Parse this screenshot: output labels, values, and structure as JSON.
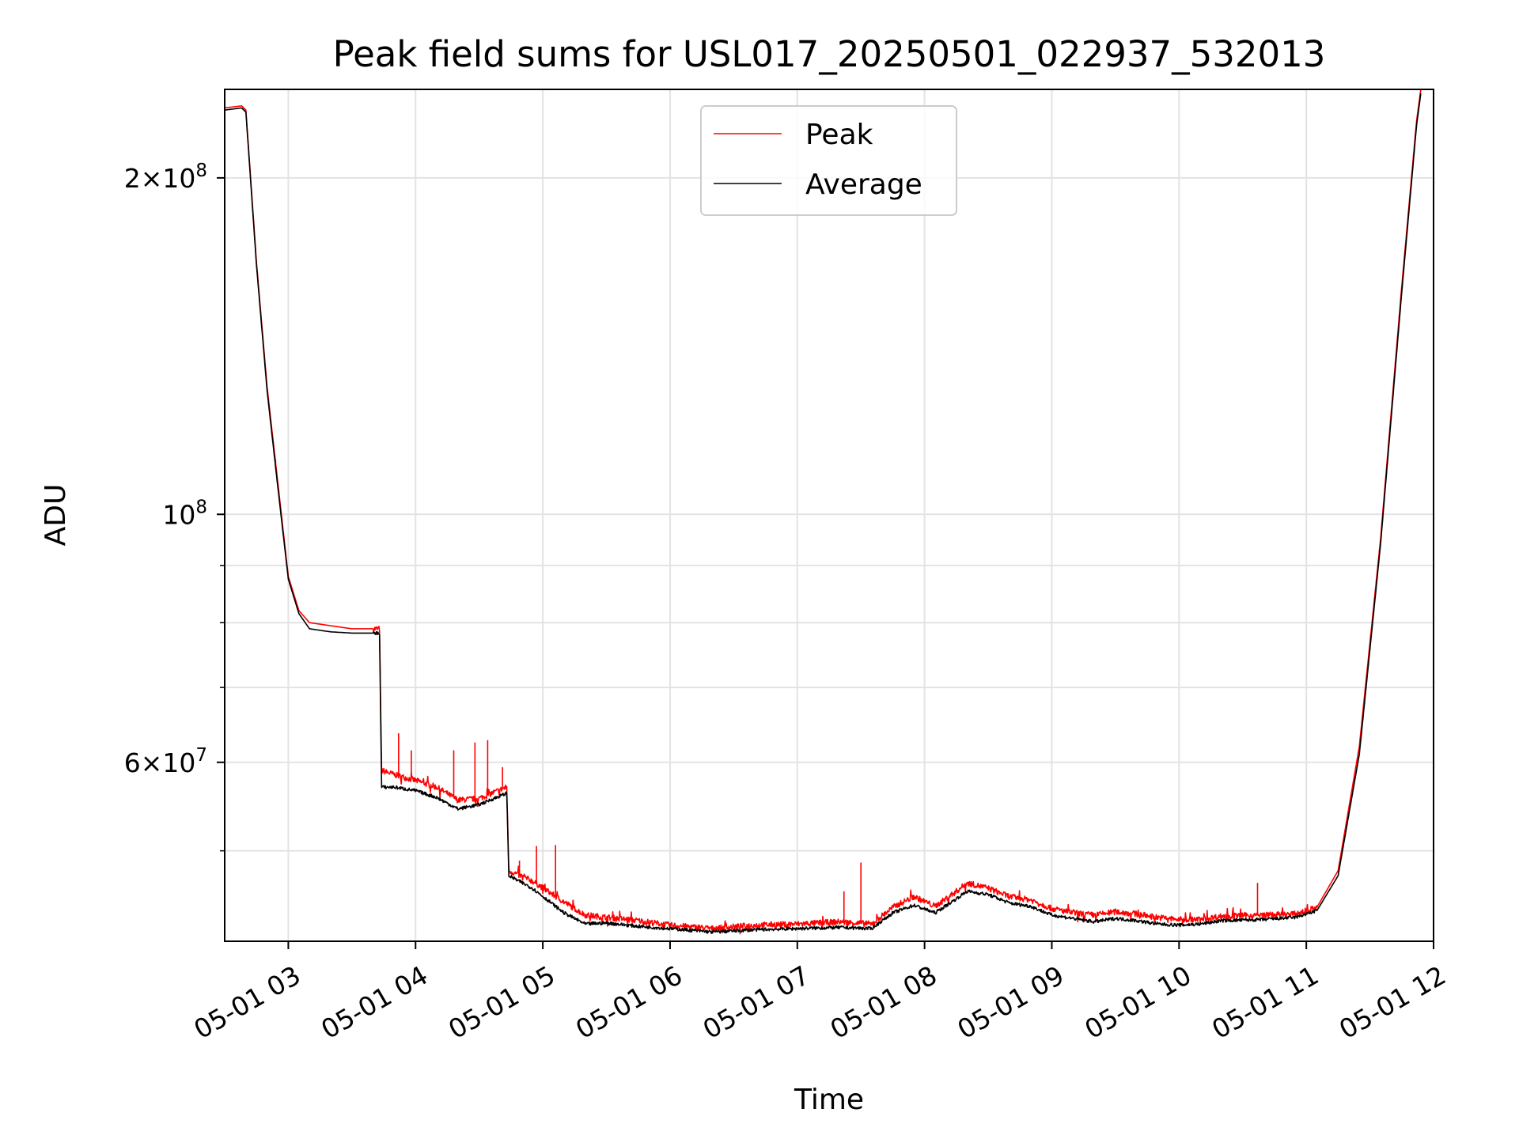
{
  "chart_data": {
    "type": "line",
    "title": "Peak field sums for USL017_20250501_022937_532013",
    "xlabel": "Time",
    "ylabel": "ADU",
    "yscale": "log",
    "xlim": [
      "2025-05-01 02:30",
      "2025-05-01 12:00"
    ],
    "ylim": [
      41500000,
      240000000
    ],
    "grid": true,
    "legend_position": "top-center",
    "x_ticks": [
      "05-01 03",
      "05-01 04",
      "05-01 05",
      "05-01 06",
      "05-01 07",
      "05-01 08",
      "05-01 09",
      "05-01 10",
      "05-01 11",
      "05-01 12"
    ],
    "y_ticks": [
      {
        "value": 60000000,
        "mantissa": "6",
        "exponent": "7"
      },
      {
        "value": 100000000,
        "mantissa": "",
        "exponent": "8"
      },
      {
        "value": 200000000,
        "mantissa": "2",
        "exponent": "8"
      }
    ],
    "series": [
      {
        "name": "Peak",
        "color": "#ff0000",
        "x": [
          "02:30",
          "02:38",
          "02:40",
          "02:45",
          "02:50",
          "02:55",
          "03:00",
          "03:05",
          "03:10",
          "03:20",
          "03:30",
          "03:43",
          "03:44",
          "03:50",
          "04:00",
          "04:10",
          "04:20",
          "04:30",
          "04:43",
          "04:44",
          "04:55",
          "05:10",
          "05:20",
          "05:30",
          "05:45",
          "06:00",
          "06:20",
          "06:40",
          "07:00",
          "07:20",
          "07:35",
          "07:45",
          "07:55",
          "08:05",
          "08:15",
          "08:20",
          "08:30",
          "08:40",
          "08:50",
          "09:00",
          "09:10",
          "09:20",
          "09:30",
          "09:40",
          "09:50",
          "10:00",
          "10:10",
          "10:20",
          "10:40",
          "10:55",
          "11:05",
          "11:15",
          "11:25",
          "11:35",
          "11:45",
          "11:52",
          "11:54"
        ],
        "values": [
          231000000,
          232000000,
          230000000,
          168000000,
          130000000,
          107000000,
          88000000,
          82000000,
          80000000,
          79500000,
          79000000,
          79000000,
          59000000,
          58500000,
          57800000,
          57000000,
          55500000,
          55700000,
          57000000,
          48000000,
          47000000,
          45000000,
          43800000,
          43600000,
          43300000,
          42900000,
          42600000,
          42900000,
          43000000,
          43200000,
          43000000,
          44500000,
          45500000,
          44600000,
          46000000,
          46800000,
          46300000,
          45500000,
          45200000,
          44400000,
          44000000,
          43800000,
          44100000,
          43900000,
          43600000,
          43400000,
          43400000,
          43700000,
          43800000,
          43900000,
          44500000,
          48000000,
          62000000,
          95000000,
          160000000,
          225000000,
          240000000
        ],
        "spikes": [
          {
            "x": "02:54",
            "value": 112000000
          },
          {
            "x": "03:52",
            "value": 63700000
          },
          {
            "x": "03:58",
            "value": 61500000
          },
          {
            "x": "04:18",
            "value": 61500000
          },
          {
            "x": "04:28",
            "value": 62500000
          },
          {
            "x": "04:34",
            "value": 62800000
          },
          {
            "x": "04:41",
            "value": 59400000
          },
          {
            "x": "04:49",
            "value": 49000000
          },
          {
            "x": "04:57",
            "value": 50500000
          },
          {
            "x": "05:06",
            "value": 50600000
          },
          {
            "x": "07:22",
            "value": 46000000
          },
          {
            "x": "07:30",
            "value": 48800000
          },
          {
            "x": "10:37",
            "value": 46800000
          }
        ]
      },
      {
        "name": "Average",
        "color": "#000000",
        "x": [
          "02:30",
          "02:38",
          "02:40",
          "02:45",
          "02:50",
          "02:55",
          "03:00",
          "03:05",
          "03:10",
          "03:20",
          "03:30",
          "03:43",
          "03:44",
          "03:50",
          "04:00",
          "04:10",
          "04:20",
          "04:30",
          "04:43",
          "04:44",
          "04:55",
          "05:10",
          "05:20",
          "05:30",
          "05:45",
          "06:00",
          "06:20",
          "06:40",
          "07:00",
          "07:20",
          "07:35",
          "07:45",
          "07:55",
          "08:05",
          "08:15",
          "08:20",
          "08:30",
          "08:40",
          "08:50",
          "09:00",
          "09:10",
          "09:20",
          "09:30",
          "09:40",
          "09:50",
          "10:00",
          "10:10",
          "10:20",
          "10:40",
          "10:55",
          "11:05",
          "11:15",
          "11:25",
          "11:35",
          "11:45",
          "11:52",
          "11:54"
        ],
        "values": [
          230000000,
          231000000,
          229000000,
          167000000,
          129000000,
          106000000,
          87500000,
          81500000,
          79000000,
          78500000,
          78300000,
          78300000,
          57000000,
          57000000,
          56600000,
          55800000,
          54500000,
          55000000,
          56300000,
          47500000,
          46300000,
          44000000,
          43000000,
          43100000,
          42800000,
          42600000,
          42300000,
          42500000,
          42600000,
          42700000,
          42600000,
          44000000,
          44700000,
          44000000,
          45300000,
          46000000,
          45700000,
          44900000,
          44600000,
          43800000,
          43500000,
          43200000,
          43500000,
          43300000,
          43000000,
          42900000,
          43000000,
          43300000,
          43400000,
          43600000,
          44200000,
          47500000,
          61000000,
          94000000,
          158000000,
          223000000,
          238000000
        ]
      }
    ]
  }
}
